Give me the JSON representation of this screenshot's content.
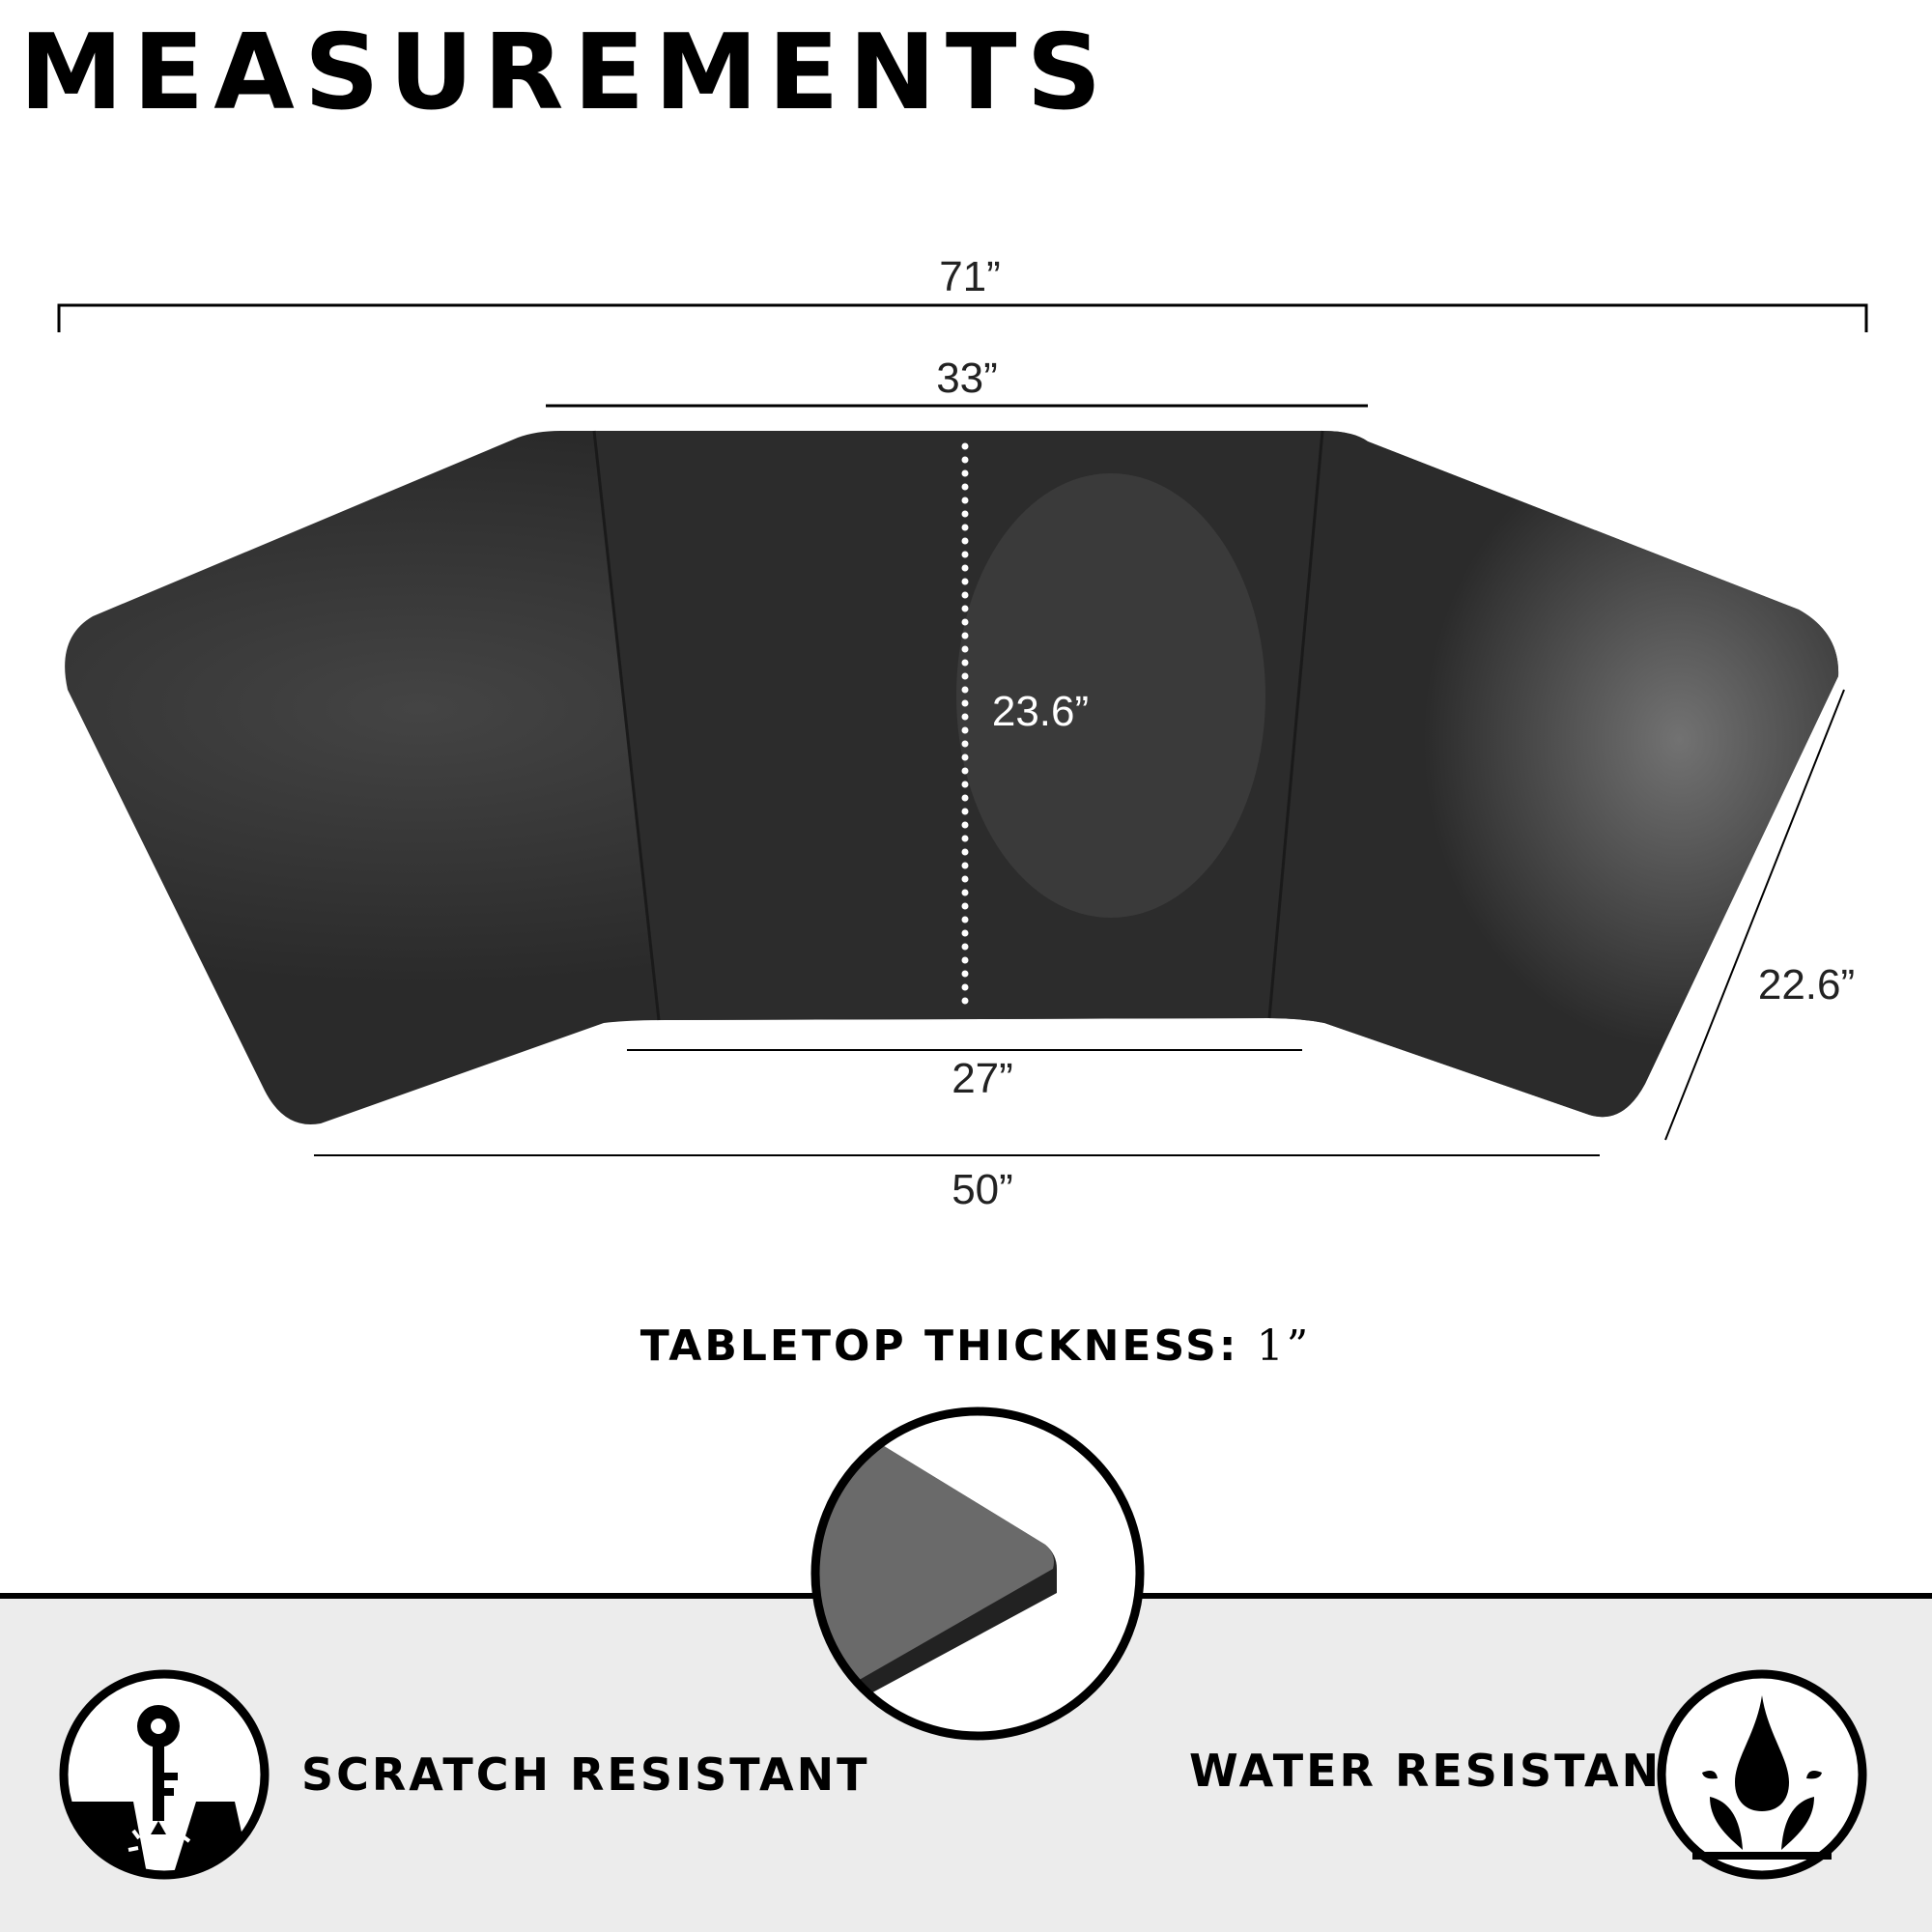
{
  "title": "MEASUREMENTS",
  "dimensions": {
    "overall_width": "71”",
    "back_center_width": "33”",
    "depth": "23.6”",
    "front_center_width": "27”",
    "front_overall_width": "50”",
    "wing_depth": "22.6”"
  },
  "thickness": {
    "label": "TABLETOP THICKNESS:",
    "value": "1”"
  },
  "features": [
    {
      "label": "SCRATCH RESISTANT",
      "icon": "key-scratch-icon"
    },
    {
      "label": "WATER RESISTANT",
      "icon": "water-drop-icon"
    }
  ],
  "colors": {
    "desk": "#2b2b2b",
    "band": "#ececec",
    "text": "#000000"
  }
}
